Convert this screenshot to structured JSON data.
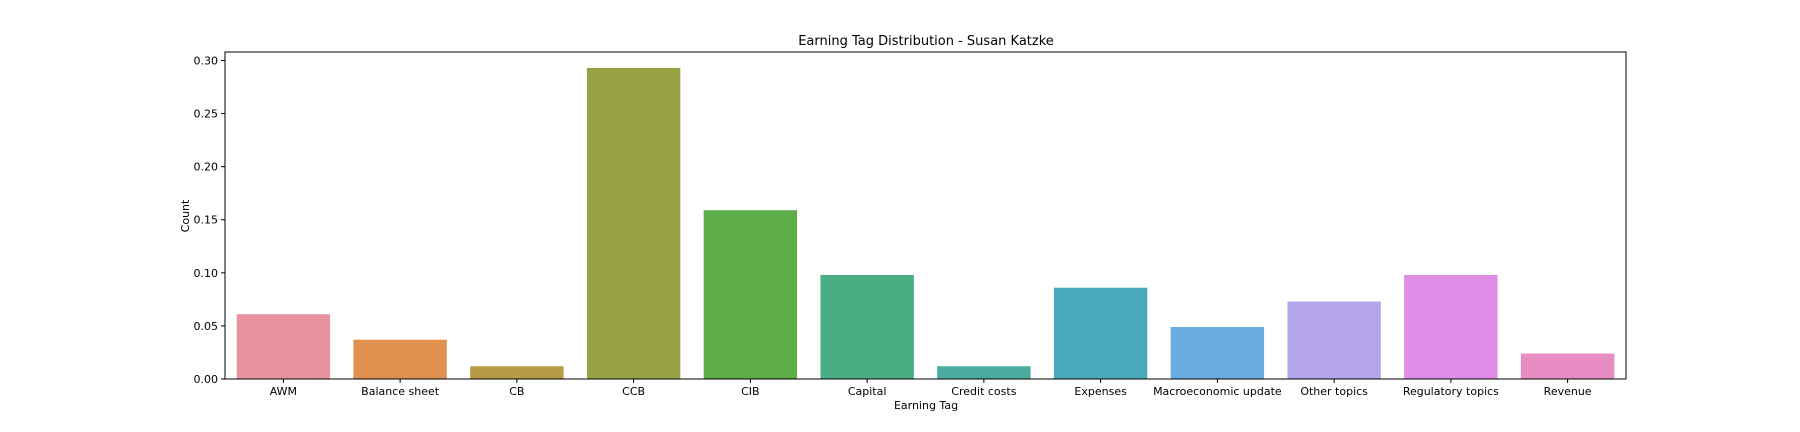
{
  "chart_data": {
    "type": "bar",
    "title": "Earning Tag Distribution - Susan Katzke",
    "xlabel": "Earning Tag",
    "ylabel": "Count",
    "categories": [
      "AWM",
      "Balance sheet",
      "CB",
      "CCB",
      "CIB",
      "Capital",
      "Credit costs",
      "Expenses",
      "Macroeconomic update",
      "Other topics",
      "Regulatory topics",
      "Revenue"
    ],
    "values": [
      0.061,
      0.037,
      0.012,
      0.293,
      0.159,
      0.098,
      0.012,
      0.086,
      0.049,
      0.073,
      0.098,
      0.024
    ],
    "colors": [
      "#e8939f",
      "#e0904f",
      "#b79b47",
      "#98a244",
      "#5fad48",
      "#4aad83",
      "#4aab9f",
      "#4aaabd",
      "#6aace0",
      "#b5a6ea",
      "#df8ce6",
      "#e88cc4"
    ],
    "ylim": [
      0,
      0.308
    ],
    "yticks": [
      "0.00",
      "0.05",
      "0.10",
      "0.15",
      "0.20",
      "0.25",
      "0.30"
    ],
    "ytick_values": [
      0,
      0.05,
      0.1,
      0.15,
      0.2,
      0.25,
      0.3
    ],
    "grid": false,
    "legend": "none"
  }
}
